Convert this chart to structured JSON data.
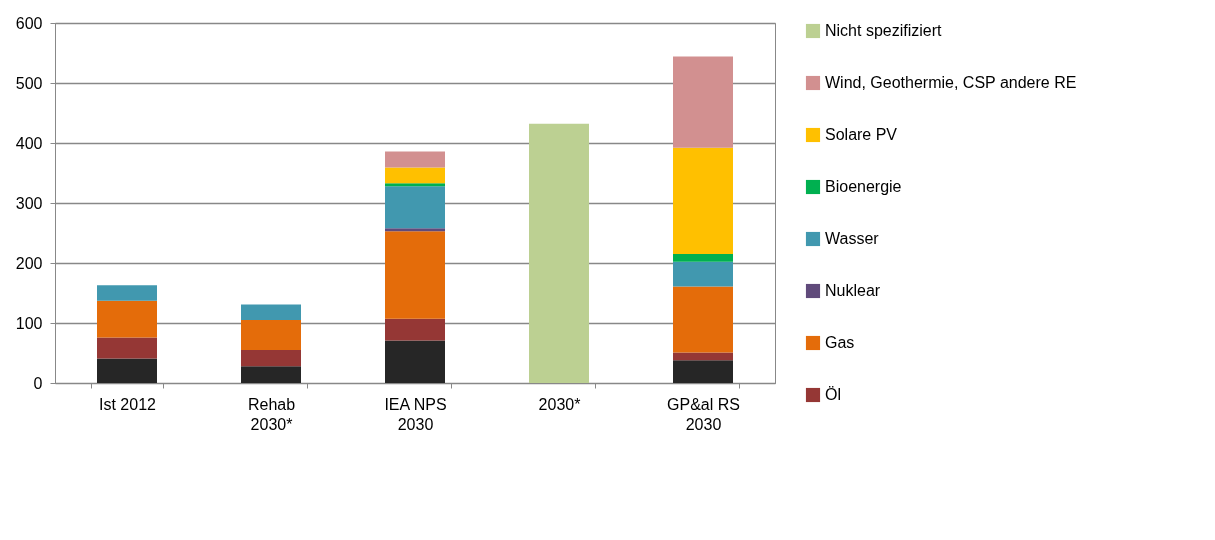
{
  "chart_data": {
    "type": "bar",
    "stacked": true,
    "categories": [
      "Ist 2012",
      "Rehab 2030*",
      "IEA NPS 2030",
      "2030*",
      "GP&al RS 2030"
    ],
    "series": [
      {
        "color": "#262626",
        "values": [
          41,
          28,
          71,
          null,
          38
        ]
      },
      {
        "name": "Öl",
        "color": "#953735",
        "values": [
          35,
          27,
          36,
          null,
          13
        ]
      },
      {
        "name": "Gas",
        "color": "#e46c0a",
        "values": [
          61,
          50,
          146,
          null,
          110
        ]
      },
      {
        "name": "Nuklear",
        "color": "#604a7b",
        "values": [
          null,
          null,
          5,
          null,
          null
        ]
      },
      {
        "name": "Wasser",
        "color": "#4198af",
        "values": [
          26,
          26,
          70,
          null,
          41
        ]
      },
      {
        "name": "Bioenergie",
        "color": "#00b050",
        "values": [
          null,
          null,
          5,
          null,
          13
        ]
      },
      {
        "name": "Solare PV",
        "color": "#ffc000",
        "values": [
          null,
          null,
          26,
          null,
          177
        ]
      },
      {
        "name": "Wind, Geothermie, CSP andere RE",
        "color": "#d29090",
        "values": [
          null,
          null,
          27,
          null,
          152
        ]
      },
      {
        "name": "Nicht spezifiziert",
        "color": "#bcd092",
        "values": [
          null,
          null,
          null,
          432,
          null
        ]
      }
    ],
    "ylim": [
      0,
      600
    ],
    "yticks": [
      0,
      100,
      200,
      300,
      400,
      500,
      600
    ],
    "grid": "y",
    "legend": "right"
  }
}
